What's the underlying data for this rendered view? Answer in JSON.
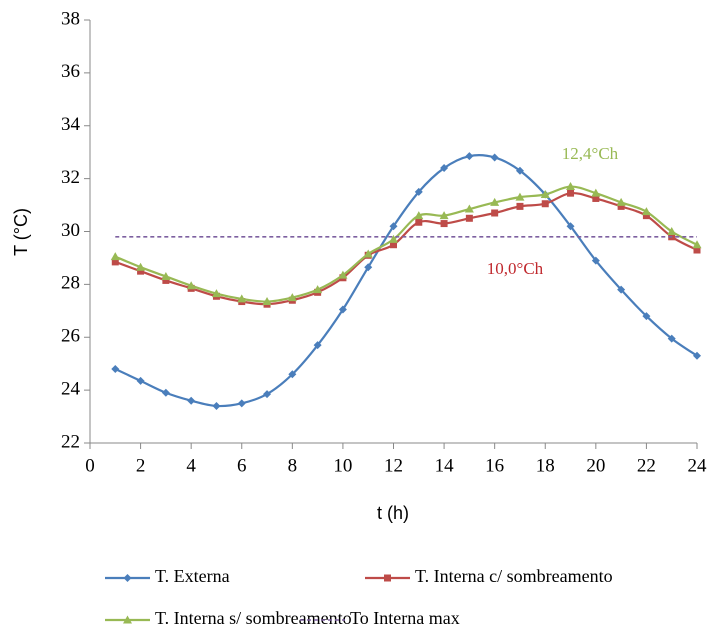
{
  "chart_data": {
    "type": "line",
    "x_label": "t (h)",
    "y_label": "T (°C)",
    "x": [
      1,
      2,
      3,
      4,
      5,
      6,
      7,
      8,
      9,
      10,
      11,
      12,
      13,
      14,
      15,
      16,
      17,
      18,
      19,
      20,
      21,
      22,
      23,
      24
    ],
    "series": [
      {
        "name": "T. Externa",
        "color": "#4a7ebb",
        "marker": "diamond",
        "values": [
          24.8,
          24.35,
          23.9,
          23.6,
          23.4,
          23.5,
          23.85,
          24.6,
          25.7,
          27.05,
          28.65,
          30.2,
          31.5,
          32.4,
          32.85,
          32.8,
          32.3,
          31.4,
          30.2,
          28.9,
          27.8,
          26.8,
          25.95,
          25.3
        ]
      },
      {
        "name": "T. Interna c/ sombreamento",
        "color": "#be4b48",
        "marker": "square",
        "values": [
          28.85,
          28.5,
          28.15,
          27.85,
          27.55,
          27.35,
          27.25,
          27.4,
          27.7,
          28.25,
          29.1,
          29.5,
          30.35,
          30.3,
          30.5,
          30.7,
          30.95,
          31.05,
          31.45,
          31.25,
          30.95,
          30.6,
          29.8,
          29.3
        ]
      },
      {
        "name": "T. Interna s/ sombreamento",
        "color": "#98b954",
        "marker": "triangle",
        "values": [
          29.05,
          28.65,
          28.3,
          27.95,
          27.65,
          27.45,
          27.35,
          27.5,
          27.8,
          28.35,
          29.15,
          29.7,
          30.6,
          30.6,
          30.85,
          31.1,
          31.3,
          31.4,
          31.7,
          31.45,
          31.1,
          30.75,
          30.0,
          29.5
        ]
      },
      {
        "name": "To Interna max",
        "color": "#7d60a0",
        "dashed": true,
        "values": [
          29.8,
          29.8,
          29.8,
          29.8,
          29.8,
          29.8,
          29.8,
          29.8,
          29.8,
          29.8,
          29.8,
          29.8,
          29.8,
          29.8,
          29.8,
          29.8,
          29.8,
          29.8,
          29.8,
          29.8,
          29.8,
          29.8,
          29.8,
          29.8
        ]
      }
    ],
    "annotations": [
      {
        "text": "12,4°Ch",
        "color": "#98b954"
      },
      {
        "text": "10,0°Ch",
        "color": "#c0282d"
      }
    ],
    "xlim": [
      0,
      24
    ],
    "xticks": [
      0,
      2,
      4,
      6,
      8,
      10,
      12,
      14,
      16,
      18,
      20,
      22,
      24
    ],
    "ylim": [
      22,
      38
    ],
    "yticks": [
      22,
      24,
      26,
      28,
      30,
      32,
      34,
      36,
      38
    ],
    "grid": false
  }
}
